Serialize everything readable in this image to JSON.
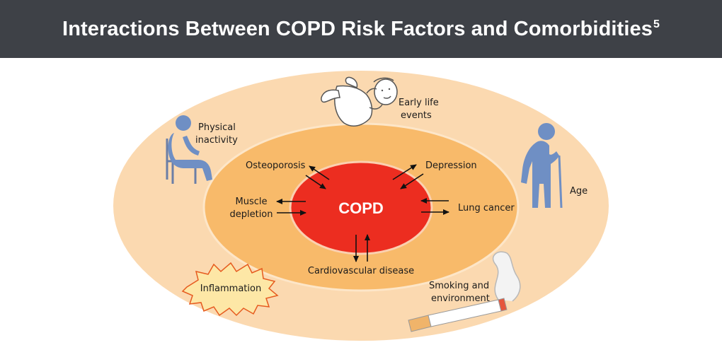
{
  "header": {
    "title": "Interactions Between COPD Risk Factors and Comorbidities",
    "superscript": "5"
  },
  "diagram": {
    "center_label": "COPD",
    "comorbidities": {
      "osteoporosis": "Osteoporosis",
      "depression": "Depression",
      "muscle_line1": "Muscle",
      "muscle_line2": "depletion",
      "lung_cancer": "Lung cancer",
      "cardiovascular": "Cardiovascular disease"
    },
    "risk_factors": {
      "early_life_line1": "Early life",
      "early_life_line2": "events",
      "physical_line1": "Physical",
      "physical_line2": "inactivity",
      "age": "Age",
      "inflammation": "Inflammation",
      "smoking_line1": "Smoking and",
      "smoking_line2": "environment"
    },
    "icons": [
      "baby-icon",
      "seated-person-icon",
      "elderly-person-icon",
      "cigarette-icon",
      "starburst-icon"
    ],
    "colors": {
      "outer_ring": "#fbd9b0",
      "middle_ring": "#f8ba6a",
      "inner_core": "#ec2d20",
      "header_bg": "#3e4147",
      "figure_blue": "#6f8fc4"
    }
  }
}
